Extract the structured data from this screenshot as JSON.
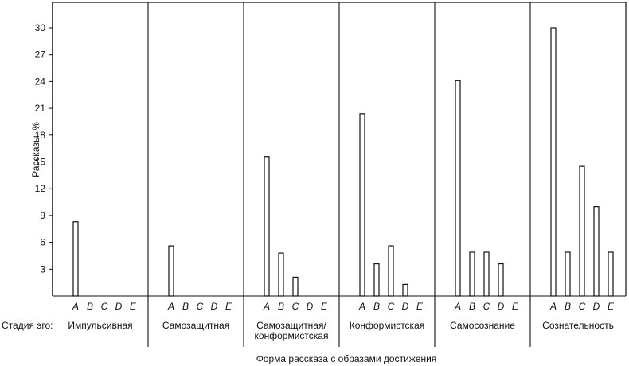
{
  "chart_data": {
    "type": "bar",
    "ylabel": "Рассказы, %",
    "xlabel": "Форма рассказа с образами достижения",
    "row_label": "Стадия эго:",
    "ylim": [
      0,
      33
    ],
    "yticks": [
      3,
      6,
      9,
      12,
      15,
      18,
      21,
      24,
      27,
      30
    ],
    "categories": [
      "A",
      "B",
      "C",
      "D",
      "E"
    ],
    "groups": [
      {
        "name": "Импульсивная",
        "values": [
          8.3,
          0,
          0,
          0,
          0
        ]
      },
      {
        "name": "Самозащитная",
        "values": [
          5.6,
          0,
          0,
          0,
          0
        ]
      },
      {
        "name": "Самозащитная/\nконформистская",
        "values": [
          15.6,
          4.8,
          2.1,
          0,
          0
        ]
      },
      {
        "name": "Конформистская",
        "values": [
          20.4,
          3.6,
          5.6,
          1.3,
          0
        ]
      },
      {
        "name": "Самосознание",
        "values": [
          24.1,
          4.9,
          4.9,
          3.6,
          0
        ]
      },
      {
        "name": "Сознательность",
        "values": [
          30.0,
          4.9,
          14.5,
          10.0,
          4.9
        ]
      }
    ]
  }
}
